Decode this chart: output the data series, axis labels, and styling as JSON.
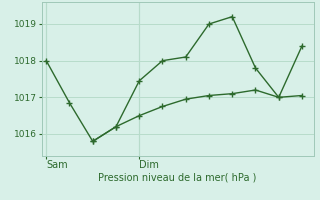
{
  "line1_x": [
    0,
    1,
    2,
    3,
    4,
    5,
    6,
    7,
    8,
    9,
    10,
    11
  ],
  "line1_y": [
    1018.0,
    1016.85,
    1015.8,
    1016.2,
    1017.45,
    1018.0,
    1018.1,
    1019.0,
    1019.2,
    1017.8,
    1017.0,
    1018.4
  ],
  "line2_x": [
    2,
    3,
    4,
    5,
    6,
    7,
    8,
    9,
    10,
    11
  ],
  "line2_y": [
    1015.8,
    1016.2,
    1016.5,
    1016.75,
    1016.95,
    1017.05,
    1017.1,
    1017.2,
    1017.0,
    1017.05
  ],
  "line_color": "#2d6a2d",
  "bg_color": "#d8f0e8",
  "grid_color": "#b8dccb",
  "yticks": [
    1016,
    1017,
    1018,
    1019
  ],
  "xtick_positions": [
    0,
    4
  ],
  "xtick_labels": [
    "Sam",
    "Dim"
  ],
  "xlabel": "Pression niveau de la mer( hPa )",
  "ylim": [
    1015.4,
    1019.6
  ],
  "xlim": [
    -0.2,
    11.5
  ]
}
